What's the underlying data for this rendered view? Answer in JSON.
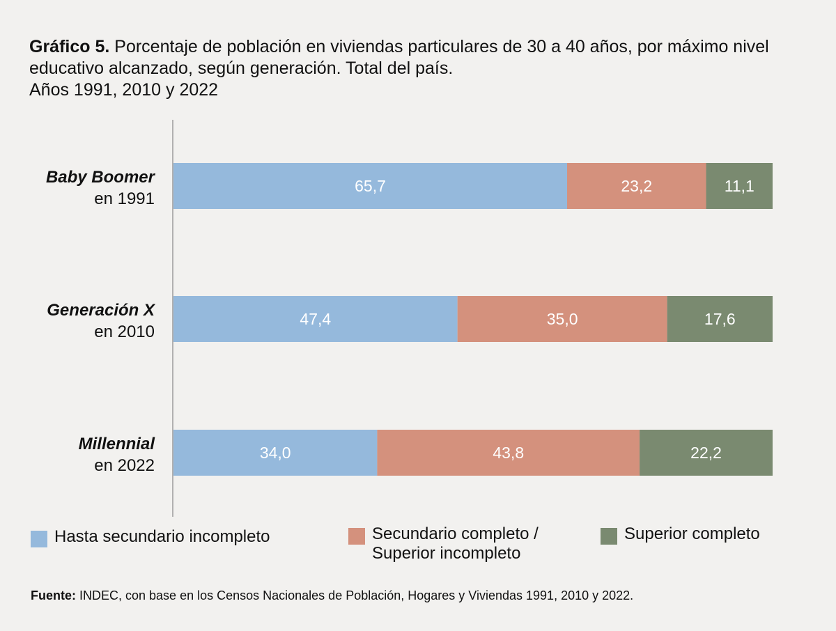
{
  "header": {
    "title_lead": "Gráfico 5.",
    "title_text": " Porcentaje de población en viviendas particulares de 30 a 40 años, por máximo nivel educativo alcanzado, según generación. Total del país.",
    "title_years": "Años 1991, 2010 y 2022"
  },
  "chart_data": {
    "type": "bar",
    "orientation": "horizontal",
    "stacked": true,
    "categories": [
      {
        "name": "Baby Boomer",
        "year": "en 1991"
      },
      {
        "name": "Generación X",
        "year": "en 2010"
      },
      {
        "name": "Millennial",
        "year": "en 2022"
      }
    ],
    "series": [
      {
        "name": "Hasta secundario incompleto",
        "color": "#95b9dc",
        "values": [
          65.7,
          47.4,
          34.0
        ],
        "labels": [
          "65,7",
          "47,4",
          "34,0"
        ]
      },
      {
        "name": "Secundario completo /\nSuperior incompleto",
        "color": "#d4917d",
        "values": [
          23.2,
          35.0,
          43.8
        ],
        "labels": [
          "23,2",
          "35,0",
          "43,8"
        ]
      },
      {
        "name": "Superior completo",
        "color": "#7a8a70",
        "values": [
          11.1,
          17.6,
          22.2
        ],
        "labels": [
          "11,1",
          "17,6",
          "22,2"
        ]
      }
    ],
    "xlim": [
      0,
      100
    ],
    "grid": false,
    "legend_position": "bottom"
  },
  "footer": {
    "source_lead": "Fuente:",
    "source_text": " INDEC, con base en los Censos Nacionales de Población, Hogares y Viviendas 1991, 2010 y 2022."
  }
}
